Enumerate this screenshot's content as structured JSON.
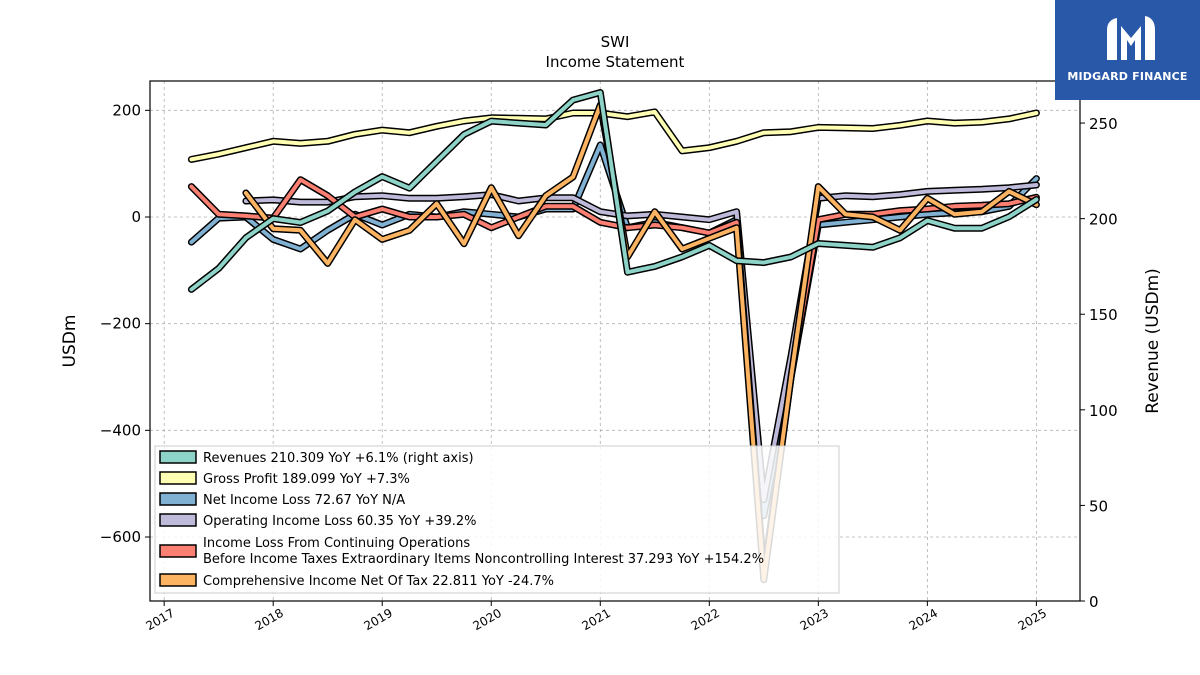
{
  "brand": {
    "name": "MIDGARD FINANCE",
    "color": "#2a58a8"
  },
  "chart_data": {
    "type": "line",
    "title": "SWI",
    "subtitle": "Income Statement",
    "ylabel": "USDm",
    "ylabel_right": "Revenue (USDm)",
    "ylim": [
      -720,
      255
    ],
    "ylim_right": [
      0,
      272
    ],
    "yticks": [
      200,
      0,
      -200,
      -400,
      -600
    ],
    "yticks_right": [
      250,
      200,
      150,
      100,
      50,
      0
    ],
    "xlim": [
      2016.87,
      2025.4
    ],
    "xticks": [
      "2017",
      "2018",
      "2019",
      "2020",
      "2021",
      "2022",
      "2023",
      "2024",
      "2025"
    ],
    "grid": true,
    "legend_position": "lower-left",
    "series": [
      {
        "name": "Gross Profit",
        "legend": "Gross Profit  189.099 YoY +7.3%",
        "color": "#ffffb3",
        "axis": "left",
        "x": [
          2017.25,
          2017.5,
          2017.75,
          2018.0,
          2018.25,
          2018.5,
          2018.75,
          2019.0,
          2019.25,
          2019.5,
          2019.75,
          2020.0,
          2020.25,
          2020.5,
          2020.75,
          2021.0,
          2021.25,
          2021.5,
          2021.75,
          2022.0,
          2022.25,
          2022.5,
          2022.75,
          2023.0,
          2023.25,
          2023.5,
          2023.75,
          2024.0,
          2024.25,
          2024.5,
          2024.75,
          2025.0
        ],
        "y": [
          108,
          118,
          130,
          142,
          138,
          142,
          155,
          163,
          158,
          170,
          180,
          186,
          185,
          184,
          195,
          195,
          188,
          197,
          124,
          130,
          142,
          158,
          160,
          168,
          167,
          166,
          172,
          180,
          176,
          178,
          184,
          195
        ]
      },
      {
        "name": "Net Income Loss",
        "legend": "Net Income Loss  72.67 YoY N/A",
        "color": "#80b1d3",
        "axis": "left",
        "x": [
          2017.25,
          2017.5,
          2017.75,
          2018.0,
          2018.25,
          2018.5,
          2018.75,
          2019.0,
          2019.25,
          2019.5,
          2019.75,
          2020.0,
          2020.25,
          2020.5,
          2020.75,
          2021.0,
          2021.25,
          2021.5,
          2021.75,
          2022.0,
          2022.25,
          2022.5,
          2022.75,
          2023.0,
          2023.25,
          2023.5,
          2023.75,
          2024.0,
          2024.25,
          2024.5,
          2024.75,
          2025.0
        ],
        "y": [
          -47,
          -2,
          0,
          -42,
          -60,
          -25,
          5,
          -15,
          5,
          0,
          10,
          5,
          0,
          15,
          15,
          135,
          -20,
          -10,
          -20,
          -30,
          -5,
          -560,
          -300,
          -15,
          -10,
          -5,
          0,
          5,
          8,
          10,
          20,
          72
        ]
      },
      {
        "name": "Operating Income Loss",
        "legend": "Operating Income Loss  60.35 YoY +39.2%",
        "color": "#bebada",
        "axis": "left",
        "x": [
          2017.75,
          2018.0,
          2018.25,
          2018.5,
          2018.75,
          2019.0,
          2019.25,
          2019.5,
          2019.75,
          2020.0,
          2020.25,
          2020.5,
          2020.75,
          2021.0,
          2021.25,
          2021.5,
          2021.75,
          2022.0,
          2022.25,
          2022.5,
          2022.75,
          2023.0,
          2023.25,
          2023.5,
          2023.75,
          2024.0,
          2024.25,
          2024.5,
          2024.75,
          2025.0
        ],
        "y": [
          30,
          32,
          28,
          28,
          38,
          40,
          35,
          35,
          38,
          42,
          30,
          36,
          36,
          10,
          2,
          5,
          0,
          -5,
          10,
          -530,
          -260,
          35,
          40,
          38,
          42,
          48,
          50,
          52,
          55,
          60
        ]
      },
      {
        "name": "Income Loss From Continuing Operations Before Income Taxes Extraordinary Items Noncontrolling Interest",
        "legend_line1": "Income Loss From Continuing Operations",
        "legend_line2": "Before Income Taxes Extraordinary Items Noncontrolling Interest  37.293 YoY +154.2%",
        "color": "#fb8072",
        "axis": "left",
        "x": [
          2017.25,
          2017.5,
          2017.75,
          2018.0,
          2018.25,
          2018.5,
          2018.75,
          2019.0,
          2019.25,
          2019.5,
          2019.75,
          2020.0,
          2020.25,
          2020.5,
          2020.75,
          2021.0,
          2021.25,
          2021.5,
          2021.75,
          2022.0,
          2022.25,
          2022.5,
          2022.75,
          2023.0,
          2023.25,
          2023.5,
          2023.75,
          2024.0,
          2024.25,
          2024.5,
          2024.75,
          2025.0
        ],
        "y": [
          57,
          5,
          2,
          -2,
          70,
          40,
          0,
          15,
          0,
          0,
          5,
          -20,
          0,
          20,
          20,
          -10,
          -20,
          -15,
          -20,
          -30,
          -10,
          -670,
          -300,
          -5,
          5,
          5,
          12,
          15,
          20,
          22,
          25,
          37
        ]
      },
      {
        "name": "Comprehensive Income Net Of Tax",
        "legend": "Comprehensive Income Net Of Tax  22.811 YoY -24.7%",
        "color": "#fdb462",
        "axis": "left",
        "x": [
          2017.75,
          2018.0,
          2018.25,
          2018.5,
          2018.75,
          2019.0,
          2019.25,
          2019.5,
          2019.75,
          2020.0,
          2020.25,
          2020.5,
          2020.75,
          2021.0,
          2021.25,
          2021.5,
          2021.75,
          2022.0,
          2022.25,
          2022.5,
          2022.75,
          2023.0,
          2023.25,
          2023.5,
          2023.75,
          2024.0,
          2024.25,
          2024.5,
          2024.75,
          2025.0
        ],
        "y": [
          45,
          -22,
          -25,
          -87,
          -5,
          -42,
          -25,
          25,
          -50,
          55,
          -35,
          40,
          75,
          210,
          -75,
          10,
          -60,
          -40,
          -20,
          -680,
          -300,
          57,
          5,
          0,
          -25,
          35,
          5,
          10,
          48,
          23
        ]
      },
      {
        "name": "Revenues",
        "legend": "Revenues  210.309 YoY +6.1% (right axis)",
        "color": "#8dd3c7",
        "axis": "right",
        "x": [
          2017.25,
          2017.5,
          2017.75,
          2018.0,
          2018.25,
          2018.5,
          2018.75,
          2019.0,
          2019.25,
          2019.5,
          2019.75,
          2020.0,
          2020.25,
          2020.5,
          2020.75,
          2021.0,
          2021.25,
          2021.5,
          2021.75,
          2022.0,
          2022.25,
          2022.5,
          2022.75,
          2023.0,
          2023.25,
          2023.5,
          2023.75,
          2024.0,
          2024.25,
          2024.5,
          2024.75,
          2025.0
        ],
        "y": [
          163,
          174,
          190,
          200,
          198,
          204,
          214,
          222,
          216,
          230,
          244,
          251,
          250,
          249,
          262,
          266,
          172,
          175,
          180,
          186,
          178,
          177,
          180,
          187,
          186,
          185,
          190,
          199,
          195,
          195,
          201,
          210
        ]
      }
    ]
  }
}
